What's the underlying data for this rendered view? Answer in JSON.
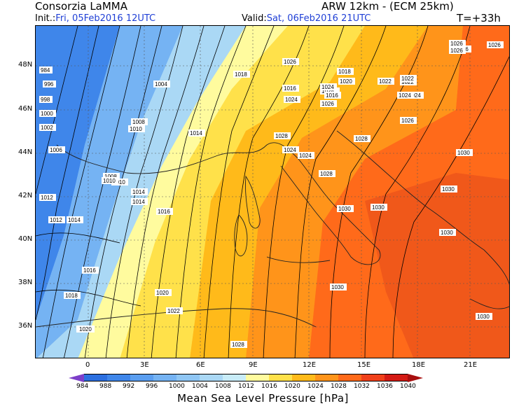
{
  "header": {
    "org": "Consorzia LaMMA",
    "model": "ARW 12km - (ECM 25km)",
    "init_label": "Init.:",
    "init_value": "Fri, 05Feb2016 12UTC",
    "valid_label": "Valid:",
    "valid_value": "Sat, 06Feb2016 21UTC",
    "lead": "T=+33h"
  },
  "axes": {
    "lat_labels": [
      "48N",
      "46N",
      "44N",
      "42N",
      "40N",
      "38N",
      "36N"
    ],
    "lon_labels": [
      "0",
      "3E",
      "6E",
      "9E",
      "12E",
      "15E",
      "18E",
      "21E"
    ]
  },
  "colorbar": {
    "title": "Mean Sea Level Pressure [hPa]",
    "levels": [
      "984",
      "988",
      "992",
      "996",
      "1000",
      "1004",
      "1008",
      "1012",
      "1016",
      "1020",
      "1024",
      "1028",
      "1032",
      "1036",
      "1040"
    ],
    "colors": [
      "#7d3fc9",
      "#2c6fe0",
      "#3f86ea",
      "#5a9ef0",
      "#75b3f3",
      "#8fc6f4",
      "#aad8f5",
      "#c8ecf8",
      "#fffb9e",
      "#ffe14a",
      "#ffba1a",
      "#ff941a",
      "#ff6a1a",
      "#f0401a",
      "#d41a14",
      "#a80f0f"
    ]
  },
  "map": {
    "isobar_labels": [
      {
        "t": "984"
      },
      {
        "t": "996"
      },
      {
        "t": "998"
      },
      {
        "t": "1000"
      },
      {
        "t": "1002"
      },
      {
        "t": "1004"
      },
      {
        "t": "1006"
      },
      {
        "t": "1006"
      },
      {
        "t": "1008"
      },
      {
        "t": "1008"
      },
      {
        "t": "1010"
      },
      {
        "t": "1010"
      },
      {
        "t": "1012"
      },
      {
        "t": "1012"
      },
      {
        "t": "1014"
      },
      {
        "t": "1014"
      },
      {
        "t": "1014"
      },
      {
        "t": "1016"
      },
      {
        "t": "1016"
      },
      {
        "t": "1016"
      },
      {
        "t": "1018"
      },
      {
        "t": "1018"
      },
      {
        "t": "1018"
      },
      {
        "t": "1020"
      },
      {
        "t": "1020"
      },
      {
        "t": "1020"
      },
      {
        "t": "1022"
      },
      {
        "t": "1022"
      },
      {
        "t": "1022"
      },
      {
        "t": "1024"
      },
      {
        "t": "1024"
      },
      {
        "t": "1024"
      },
      {
        "t": "1024"
      },
      {
        "t": "1024"
      },
      {
        "t": "1026"
      },
      {
        "t": "1026"
      },
      {
        "t": "1026"
      },
      {
        "t": "1026"
      },
      {
        "t": "1026"
      },
      {
        "t": "1028"
      },
      {
        "t": "1028"
      },
      {
        "t": "1028"
      },
      {
        "t": "1030"
      },
      {
        "t": "1030"
      },
      {
        "t": "1030"
      },
      {
        "t": "1030"
      },
      {
        "t": "1030"
      },
      {
        "t": "1030"
      },
      {
        "t": "1030"
      },
      {
        "t": "1020"
      },
      {
        "t": "1024"
      },
      {
        "t": "1026"
      },
      {
        "t": "1028"
      },
      {
        "t": "1016"
      },
      {
        "t": "1010"
      },
      {
        "t": "1014"
      },
      {
        "t": "1022"
      },
      {
        "t": "1024"
      },
      {
        "t": "1024"
      },
      {
        "t": "1026"
      }
    ]
  }
}
